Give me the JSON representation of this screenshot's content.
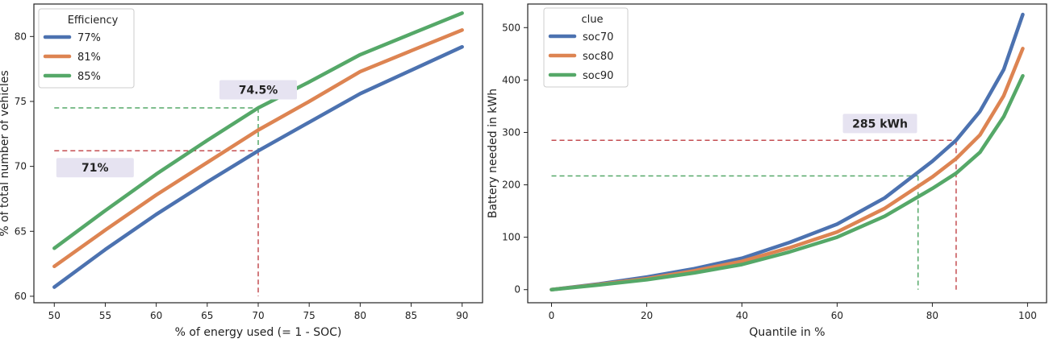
{
  "chart_data": [
    {
      "type": "line",
      "xlabel": "% of energy used (= 1 - SOC)",
      "ylabel": "% of total number of vehicles",
      "xlim": [
        48,
        92
      ],
      "ylim": [
        59.5,
        82.5
      ],
      "xticks": [
        50,
        55,
        60,
        65,
        70,
        75,
        80,
        85,
        90
      ],
      "yticks": [
        60,
        65,
        70,
        75,
        80
      ],
      "grid": false,
      "legend": {
        "title": "Efficiency",
        "position": "top-left"
      },
      "series": [
        {
          "name": "77%",
          "color": "#4c72b0",
          "x": [
            50,
            55,
            60,
            65,
            70,
            75,
            80,
            85,
            90
          ],
          "y": [
            60.7,
            63.6,
            66.3,
            68.8,
            71.2,
            73.4,
            75.6,
            77.4,
            79.2
          ]
        },
        {
          "name": "81%",
          "color": "#dd8452",
          "x": [
            50,
            55,
            60,
            65,
            70,
            75,
            80,
            85,
            90
          ],
          "y": [
            62.3,
            65.1,
            67.8,
            70.3,
            72.8,
            75.0,
            77.3,
            78.9,
            80.5
          ]
        },
        {
          "name": "85%",
          "color": "#55a868",
          "x": [
            50,
            55,
            60,
            65,
            70,
            75,
            80,
            85,
            90
          ],
          "y": [
            63.7,
            66.6,
            69.4,
            72.0,
            74.5,
            76.5,
            78.6,
            80.2,
            81.8
          ]
        }
      ],
      "guides": [
        {
          "color": "#55a868",
          "y": 74.5,
          "x_from": 50,
          "x_to": 70
        },
        {
          "color": "#c44e52",
          "y": 71.2,
          "x_from": 50,
          "x_to": 70
        },
        {
          "color": "#55a868",
          "x": 70,
          "y_from": 74.5,
          "y_to": 71.2
        },
        {
          "color": "#c44e52",
          "x": 70,
          "y_from": 71.2,
          "y_to": 60
        }
      ],
      "annotations": [
        {
          "text": "74.5%",
          "x": 70,
          "y": 75.9
        },
        {
          "text": "71%",
          "x": 54,
          "y": 69.9
        }
      ]
    },
    {
      "type": "line",
      "xlabel": "Quantile in %",
      "ylabel": "Battery needed in kWh",
      "xlim": [
        -5,
        104
      ],
      "ylim": [
        -25,
        545
      ],
      "xticks": [
        0,
        20,
        40,
        60,
        80,
        100
      ],
      "yticks": [
        0,
        100,
        200,
        300,
        400,
        500
      ],
      "grid": false,
      "legend": {
        "title": "clue",
        "position": "top-left"
      },
      "series": [
        {
          "name": "soc70",
          "color": "#4c72b0",
          "x": [
            0,
            10,
            20,
            30,
            40,
            50,
            60,
            70,
            80,
            85,
            90,
            95,
            99
          ],
          "y": [
            0,
            11,
            24,
            40,
            60,
            90,
            125,
            175,
            245,
            285,
            340,
            420,
            525
          ]
        },
        {
          "name": "soc80",
          "color": "#dd8452",
          "x": [
            0,
            10,
            20,
            30,
            40,
            50,
            60,
            70,
            80,
            85,
            90,
            95,
            99
          ],
          "y": [
            0,
            10,
            21,
            36,
            54,
            80,
            110,
            155,
            215,
            250,
            295,
            370,
            460
          ]
        },
        {
          "name": "soc90",
          "color": "#55a868",
          "x": [
            0,
            10,
            20,
            30,
            40,
            50,
            60,
            70,
            80,
            85,
            90,
            95,
            99
          ],
          "y": [
            0,
            9,
            19,
            32,
            48,
            72,
            100,
            140,
            193,
            222,
            262,
            330,
            408
          ]
        }
      ],
      "guides": [
        {
          "color": "#c44e52",
          "y": 285,
          "x_from": 0,
          "x_to": 85
        },
        {
          "color": "#55a868",
          "y": 217,
          "x_from": 0,
          "x_to": 77
        },
        {
          "color": "#c44e52",
          "x": 85,
          "y_from": 285,
          "y_to": 0
        },
        {
          "color": "#55a868",
          "x": 77,
          "y_from": 217,
          "y_to": 0
        }
      ],
      "annotations": [
        {
          "text": "285 kWh",
          "x": 69,
          "y": 317
        }
      ]
    }
  ]
}
